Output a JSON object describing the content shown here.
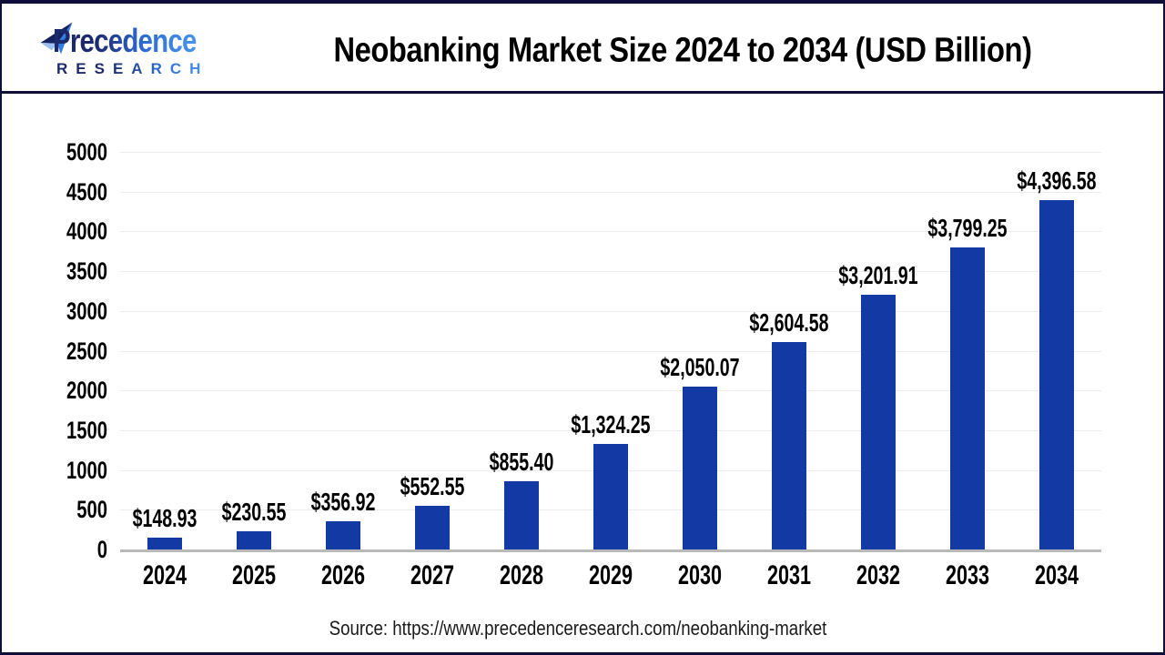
{
  "header": {
    "logo": {
      "brand_line1": "Precedence",
      "brand_line2": "RESEARCH",
      "icon": "paper-plane-icon"
    },
    "title": "Neobanking Market Size 2024 to 2034 (USD Billion)"
  },
  "chart_data": {
    "type": "bar",
    "title": "Neobanking Market Size 2024 to 2034 (USD Billion)",
    "categories": [
      "2024",
      "2025",
      "2026",
      "2027",
      "2028",
      "2029",
      "2030",
      "2031",
      "2032",
      "2033",
      "2034"
    ],
    "values": [
      148.93,
      230.55,
      356.92,
      552.55,
      855.4,
      1324.25,
      2050.07,
      2604.58,
      3201.91,
      3799.25,
      4396.58
    ],
    "value_labels": [
      "$148.93",
      "$230.55",
      "$356.92",
      "$552.55",
      "$855.40",
      "$1,324.25",
      "$2,050.07",
      "$2,604.58",
      "$3,201.91",
      "$3,799.25",
      "$4,396.58"
    ],
    "xlabel": "",
    "ylabel": "",
    "ylim": [
      0,
      5000
    ],
    "yticks": [
      0,
      500,
      1000,
      1500,
      2000,
      2500,
      3000,
      3500,
      4000,
      4500,
      5000
    ],
    "grid": true,
    "legend_position": "none",
    "bar_color": "#1239a4"
  },
  "footer": {
    "source": "Source: https://www.precedenceresearch.com/neobanking-market"
  },
  "colors": {
    "bar": "#1239a4",
    "frame_border": "#0e0e38",
    "axis_line": "#b9b9b9",
    "gridline": "#ededed",
    "title_text": "#000000",
    "source_text": "#1a1a1a",
    "logo_dark": "#1c2a6d",
    "logo_light": "#4a94ea"
  }
}
